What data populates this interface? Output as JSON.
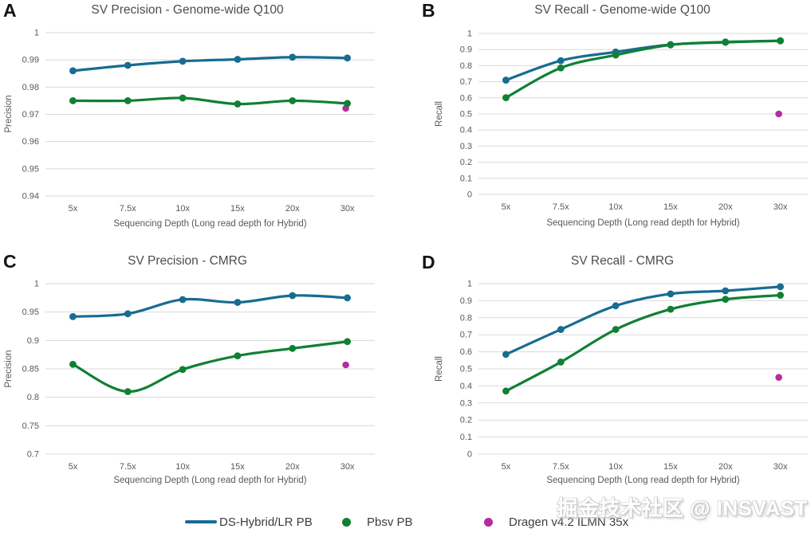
{
  "figure": {
    "watermark": "掘金技术社区 @ INSVAST",
    "background": "#ffffff"
  },
  "colors": {
    "ds_hybrid_blue": "#186c90",
    "pbsv_green": "#108034",
    "dragen_magenta": "#b92a9e",
    "gridline": "#d9d9d9",
    "tick_text": "#595959",
    "title_text": "#4d4d4d"
  },
  "legend": {
    "items": [
      {
        "label": "DS-Hybrid/LR PB",
        "marker": "line",
        "color": "#186c90"
      },
      {
        "label": "Pbsv PB",
        "marker": "dot",
        "color": "#108034"
      },
      {
        "label": "Dragen v4.2 ILMN 35x",
        "marker": "dot",
        "color": "#b92a9e"
      }
    ],
    "position": "bottom-center-shared"
  },
  "chart_data": [
    {
      "panel": "A",
      "type": "line",
      "title": "SV Precision - Genome-wide Q100",
      "xlabel": "Sequencing Depth (Long read depth for Hybrid)",
      "ylabel": "Precision",
      "ylim": [
        0.94,
        1
      ],
      "yticks": [
        1,
        0.99,
        0.98,
        0.97,
        0.96,
        0.95,
        0.94
      ],
      "categories": [
        "5x",
        "7.5x",
        "10x",
        "15x",
        "20x",
        "30x"
      ],
      "grid": true,
      "series": [
        {
          "name": "DS-Hybrid/LR PB",
          "color": "#186c90",
          "values": [
            0.986,
            0.988,
            0.9895,
            0.9902,
            0.991,
            0.9907
          ]
        },
        {
          "name": "Pbsv PB",
          "color": "#108034",
          "values": [
            0.975,
            0.975,
            0.976,
            0.9738,
            0.975,
            0.974
          ]
        }
      ],
      "scatter": [
        {
          "name": "Dragen v4.2 ILMN 35x",
          "color": "#b92a9e",
          "category": "30x",
          "value": 0.9722
        }
      ]
    },
    {
      "panel": "B",
      "type": "line",
      "title": "SV Recall - Genome-wide Q100",
      "xlabel": "Sequencing Depth (Long read depth for Hybrid)",
      "ylabel": "Recall",
      "ylim": [
        0,
        1
      ],
      "yticks": [
        1,
        0.9,
        0.8,
        0.7,
        0.6,
        0.5,
        0.4,
        0.3,
        0.2,
        0.1,
        0
      ],
      "categories": [
        "5x",
        "7.5x",
        "10x",
        "15x",
        "20x",
        "30x"
      ],
      "grid": true,
      "series": [
        {
          "name": "DS-Hybrid/LR PB",
          "color": "#186c90",
          "values": [
            0.71,
            0.831,
            0.885,
            0.931,
            0.945,
            0.955
          ]
        },
        {
          "name": "Pbsv PB",
          "color": "#108034",
          "values": [
            0.601,
            0.786,
            0.866,
            0.929,
            0.947,
            0.954
          ]
        }
      ],
      "scatter": [
        {
          "name": "Dragen v4.2 ILMN 35x",
          "color": "#b92a9e",
          "category": "30x",
          "value": 0.5
        }
      ]
    },
    {
      "panel": "C",
      "type": "line",
      "title": "SV Precision - CMRG",
      "xlabel": "Sequencing Depth (Long read depth for Hybrid)",
      "ylabel": "Precision",
      "ylim": [
        0.7,
        1
      ],
      "yticks": [
        1,
        0.95,
        0.9,
        0.85,
        0.8,
        0.75,
        0.7
      ],
      "categories": [
        "5x",
        "7.5x",
        "10x",
        "15x",
        "20x",
        "30x"
      ],
      "grid": true,
      "series": [
        {
          "name": "DS-Hybrid/LR PB",
          "color": "#186c90",
          "values": [
            0.942,
            0.947,
            0.972,
            0.967,
            0.979,
            0.975
          ]
        },
        {
          "name": "Pbsv PB",
          "color": "#108034",
          "values": [
            0.858,
            0.81,
            0.849,
            0.873,
            0.886,
            0.898
          ]
        }
      ],
      "scatter": [
        {
          "name": "Dragen v4.2 ILMN 35x",
          "color": "#b92a9e",
          "category": "30x",
          "value": 0.857
        }
      ]
    },
    {
      "panel": "D",
      "type": "line",
      "title": "SV Recall - CMRG",
      "xlabel": "Sequencing Depth (Long read depth for Hybrid)",
      "ylabel": "Recall",
      "ylim": [
        0,
        1
      ],
      "yticks": [
        1,
        0.9,
        0.8,
        0.7,
        0.6,
        0.5,
        0.4,
        0.3,
        0.2,
        0.1,
        0
      ],
      "categories": [
        "5x",
        "7.5x",
        "10x",
        "15x",
        "20x",
        "30x"
      ],
      "grid": true,
      "series": [
        {
          "name": "DS-Hybrid/LR PB",
          "color": "#186c90",
          "values": [
            0.585,
            0.731,
            0.87,
            0.94,
            0.958,
            0.982
          ]
        },
        {
          "name": "Pbsv PB",
          "color": "#108034",
          "values": [
            0.37,
            0.54,
            0.731,
            0.85,
            0.908,
            0.932
          ]
        }
      ],
      "scatter": [
        {
          "name": "Dragen v4.2 ILMN 35x",
          "color": "#b92a9e",
          "category": "30x",
          "value": 0.45
        }
      ]
    }
  ]
}
